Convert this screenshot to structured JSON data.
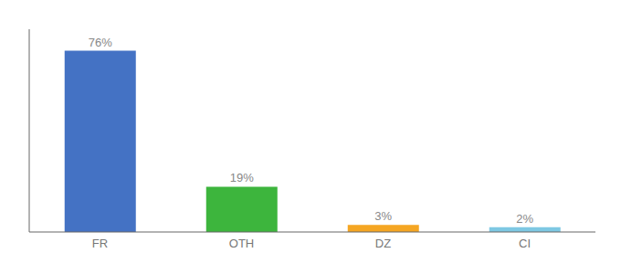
{
  "chart_data": {
    "type": "bar",
    "categories": [
      "FR",
      "OTH",
      "DZ",
      "CI"
    ],
    "values": [
      76,
      19,
      3,
      2
    ],
    "value_labels": [
      "76%",
      "19%",
      "3%",
      "2%"
    ],
    "data_labels": true,
    "colors": [
      "#4472c4",
      "#3db53d",
      "#f5a623",
      "#7ec8e3"
    ],
    "ylim": [
      0,
      85
    ],
    "grid": false,
    "tick_labels": "x"
  }
}
